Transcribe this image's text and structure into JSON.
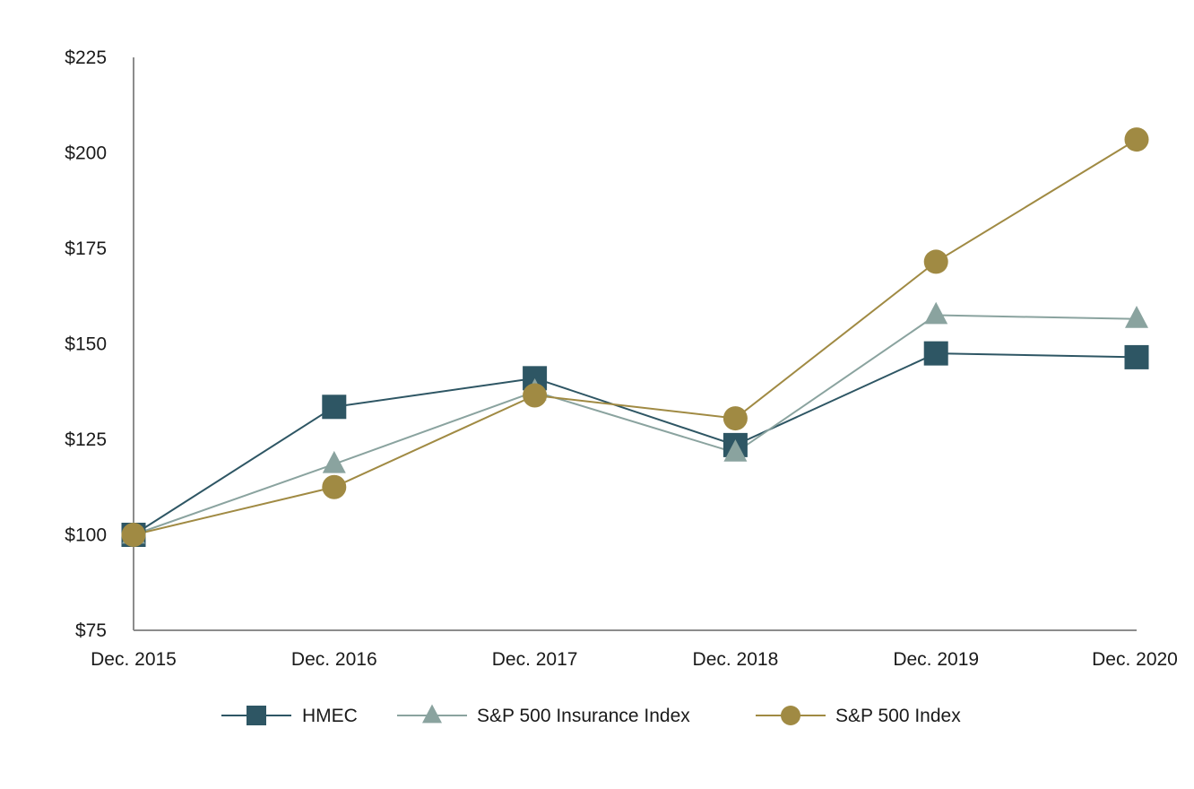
{
  "chart_data": {
    "type": "line",
    "title": "",
    "xlabel": "",
    "ylabel": "",
    "categories": [
      "Dec. 2015",
      "Dec. 2016",
      "Dec. 2017",
      "Dec. 2018",
      "Dec. 2019",
      "Dec. 2020"
    ],
    "yticks": [
      75,
      100,
      125,
      150,
      175,
      200,
      225
    ],
    "ytick_labels": [
      "$75",
      "$100",
      "$125",
      "$150",
      "$175",
      "$200",
      "$225"
    ],
    "ylim": [
      75,
      225
    ],
    "grid": false,
    "legend_position": "bottom-center",
    "series": [
      {
        "name": "HMEC",
        "marker": "square",
        "color": "#2e5664",
        "values": [
          100,
          133.5,
          141,
          123.5,
          147.5,
          146.5
        ]
      },
      {
        "name": "S&P 500 Insurance Index",
        "marker": "triangle",
        "color": "#8aa39f",
        "values": [
          100,
          118.5,
          137.5,
          121.5,
          157.5,
          156.5
        ]
      },
      {
        "name": "S&P 500 Index",
        "marker": "circle",
        "color": "#a08a43",
        "values": [
          100,
          112.5,
          136.5,
          130.5,
          171.5,
          203.5
        ]
      }
    ]
  }
}
